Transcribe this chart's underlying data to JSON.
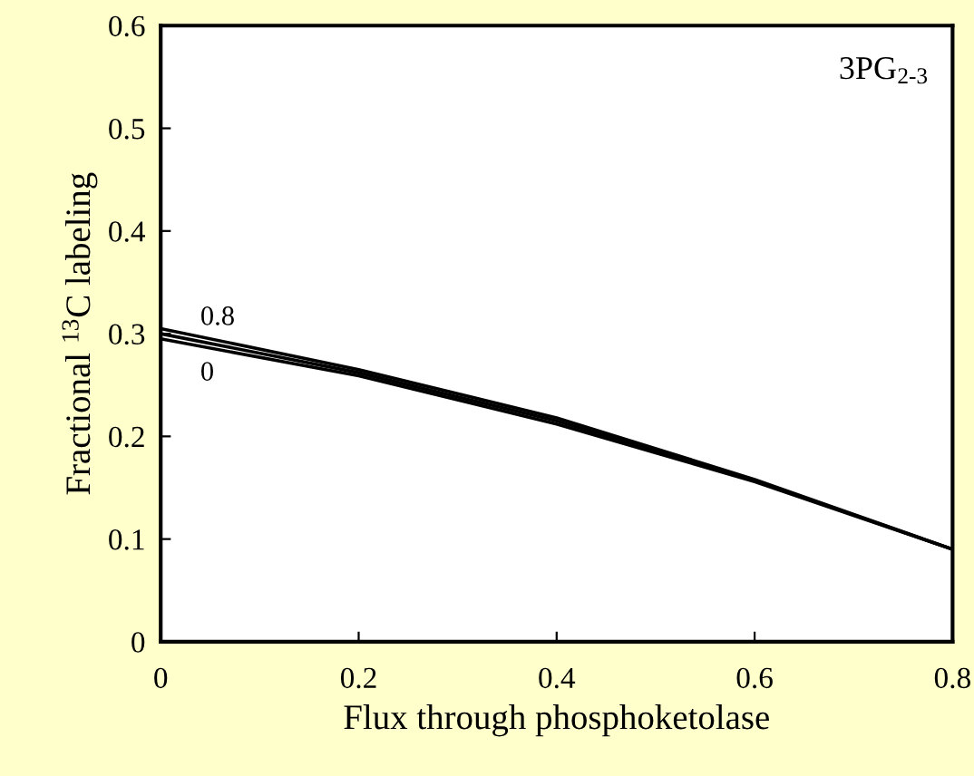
{
  "chart_data": {
    "type": "line",
    "title": "3PG$_{2-3}$",
    "xlabel": "Flux through phosphoketolase",
    "ylabel": "Fractional $^{13}$C labeling",
    "x": [
      0,
      0.2,
      0.4,
      0.6,
      0.8
    ],
    "series": [
      {
        "color": "#000000",
        "values": [
          0.305,
          0.265,
          0.218,
          0.158,
          0.09
        ]
      },
      {
        "color": "#000000",
        "values": [
          0.3,
          0.262,
          0.215,
          0.157,
          0.09
        ]
      },
      {
        "color": "#000000",
        "values": [
          0.295,
          0.259,
          0.212,
          0.156,
          0.09
        ]
      }
    ],
    "annotations": [
      "0.8",
      "0"
    ],
    "xlim": [
      0,
      0.8
    ],
    "xticks": [
      0,
      0.2,
      0.4,
      0.6,
      0.8
    ],
    "ylim": [
      0,
      0.6
    ],
    "yticks": [
      0,
      0.1,
      0.2,
      0.3,
      0.4,
      0.5,
      0.6
    ],
    "grid": false,
    "legend": false,
    "marker": "none",
    "line_style": "solid"
  }
}
